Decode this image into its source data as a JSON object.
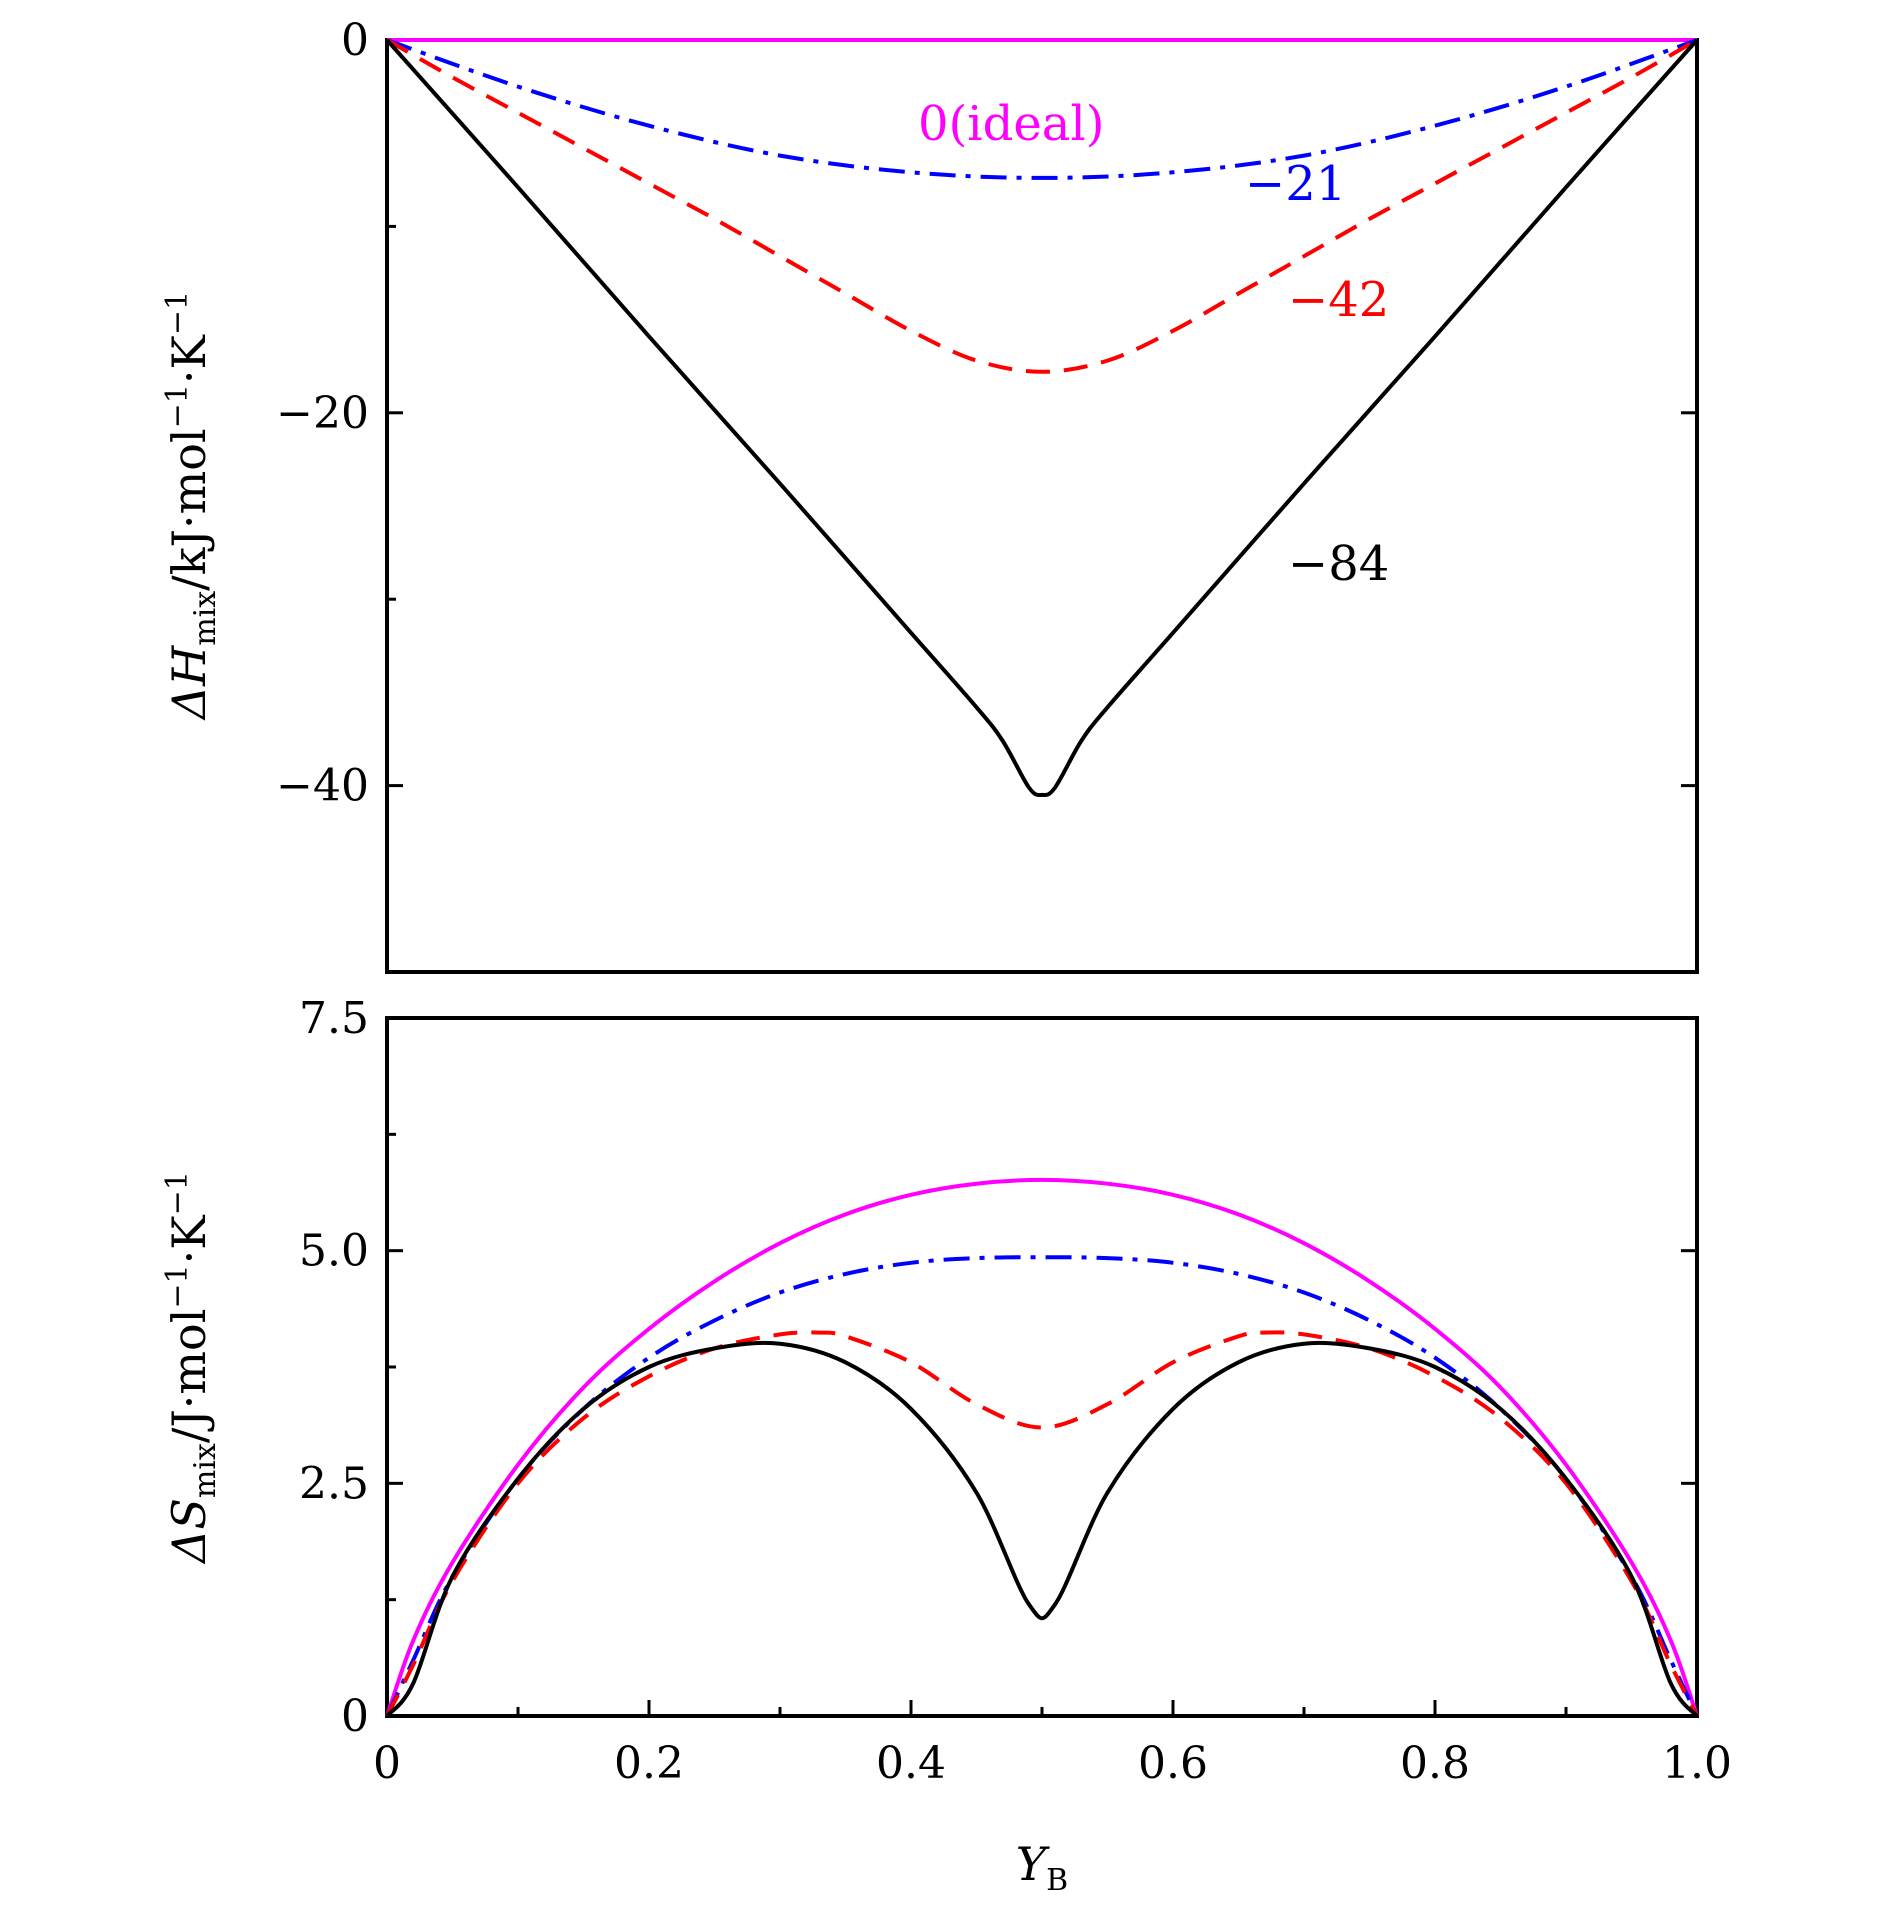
{
  "chart_data": [
    {
      "type": "line",
      "panel": "top",
      "ylabel_parts": {
        "prefix": "ΔH",
        "sub": "mix",
        "units": "/kJ·mol",
        "exp1": "−1",
        "mid": "·K",
        "exp2": "−1"
      },
      "xlim": [
        0,
        1.0
      ],
      "ylim": [
        -50,
        0
      ],
      "yticks_major": [
        0,
        -20,
        -40
      ],
      "ytick_labels": [
        "0",
        "−20",
        "−40"
      ],
      "yticks_minor": [
        -10,
        -30
      ],
      "series": [
        {
          "name": "0(ideal)",
          "label": "0(ideal)",
          "color": "#ff00ff",
          "style": "solid",
          "x": [
            0,
            1
          ],
          "y": [
            0,
            0
          ]
        },
        {
          "name": "−21",
          "label": "−21",
          "color": "#0000ff",
          "style": "dashdot",
          "x": [
            0,
            0.1,
            0.2,
            0.3,
            0.4,
            0.5,
            0.6,
            0.7,
            0.8,
            0.9,
            1.0
          ],
          "y": [
            0,
            -2.5,
            -4.6,
            -6.2,
            -7.1,
            -7.4,
            -7.1,
            -6.2,
            -4.6,
            -2.5,
            0
          ]
        },
        {
          "name": "−42",
          "label": "−42",
          "color": "#ff0000",
          "style": "dashed",
          "x": [
            0,
            0.05,
            0.1,
            0.15,
            0.2,
            0.25,
            0.3,
            0.35,
            0.4,
            0.45,
            0.5,
            0.55,
            0.6,
            0.65,
            0.7,
            0.75,
            0.8,
            0.85,
            0.9,
            0.95,
            1.0
          ],
          "y": [
            0,
            -2.0,
            -3.9,
            -5.8,
            -7.7,
            -9.6,
            -11.6,
            -13.6,
            -15.6,
            -17.2,
            -17.8,
            -17.2,
            -15.6,
            -13.6,
            -11.6,
            -9.6,
            -7.7,
            -5.8,
            -3.9,
            -2.0,
            0
          ]
        },
        {
          "name": "−84",
          "label": "−84",
          "color": "#000000",
          "style": "solid",
          "x": [
            0,
            0.1,
            0.2,
            0.3,
            0.4,
            0.45,
            0.47,
            0.49,
            0.5,
            0.51,
            0.53,
            0.55,
            0.6,
            0.7,
            0.8,
            0.9,
            1.0
          ],
          "y": [
            0,
            -7.9,
            -15.9,
            -23.8,
            -31.8,
            -35.8,
            -37.6,
            -40.1,
            -40.5,
            -40.1,
            -37.6,
            -35.8,
            -31.8,
            -23.8,
            -15.9,
            -7.9,
            0
          ]
        }
      ]
    },
    {
      "type": "line",
      "panel": "bottom",
      "xlabel_parts": {
        "main": "Y",
        "sub": "B"
      },
      "ylabel_parts": {
        "prefix": "ΔS",
        "sub": "mix",
        "units": "/J·mol",
        "exp1": "−1",
        "mid": "·K",
        "exp2": "−1"
      },
      "xlim": [
        0,
        1.0
      ],
      "ylim": [
        0,
        7.5
      ],
      "xticks_major": [
        0,
        0.2,
        0.4,
        0.6,
        0.8,
        1.0
      ],
      "xtick_labels": [
        "0",
        "0.2",
        "0.4",
        "0.6",
        "0.8",
        "1.0"
      ],
      "xticks_minor": [
        0.1,
        0.3,
        0.5,
        0.7,
        0.9
      ],
      "yticks_major": [
        0,
        2.5,
        5.0,
        7.5
      ],
      "ytick_labels": [
        "0",
        "2.5",
        "5.0",
        "7.5"
      ],
      "yticks_minor": [
        1.25,
        3.75,
        6.25
      ],
      "series": [
        {
          "name": "0(ideal)",
          "color": "#ff00ff",
          "style": "solid",
          "x": [
            0,
            0.02,
            0.05,
            0.1,
            0.15,
            0.2,
            0.25,
            0.3,
            0.35,
            0.4,
            0.45,
            0.5,
            0.55,
            0.6,
            0.65,
            0.7,
            0.75,
            0.8,
            0.85,
            0.9,
            0.95,
            0.98,
            1.0
          ],
          "y": [
            0,
            0.81,
            1.65,
            2.7,
            3.53,
            4.16,
            4.67,
            5.08,
            5.39,
            5.6,
            5.72,
            5.76,
            5.72,
            5.6,
            5.39,
            5.08,
            4.67,
            4.16,
            3.53,
            2.7,
            1.65,
            0.81,
            0
          ]
        },
        {
          "name": "−21",
          "color": "#0000ff",
          "style": "dashdot",
          "x": [
            0,
            0.02,
            0.05,
            0.1,
            0.15,
            0.2,
            0.25,
            0.3,
            0.35,
            0.4,
            0.45,
            0.5,
            0.55,
            0.6,
            0.65,
            0.7,
            0.75,
            0.8,
            0.85,
            0.9,
            0.95,
            0.98,
            1.0
          ],
          "y": [
            0,
            0.6,
            1.5,
            2.55,
            3.3,
            3.85,
            4.25,
            4.55,
            4.75,
            4.87,
            4.92,
            4.93,
            4.92,
            4.87,
            4.75,
            4.55,
            4.25,
            3.85,
            3.3,
            2.55,
            1.5,
            0.6,
            0
          ]
        },
        {
          "name": "−42",
          "color": "#ff0000",
          "style": "dashed",
          "x": [
            0,
            0.02,
            0.05,
            0.1,
            0.15,
            0.2,
            0.25,
            0.3,
            0.33,
            0.35,
            0.4,
            0.45,
            0.5,
            0.55,
            0.6,
            0.65,
            0.67,
            0.7,
            0.75,
            0.8,
            0.85,
            0.9,
            0.95,
            0.98,
            1.0
          ],
          "y": [
            0,
            0.55,
            1.45,
            2.5,
            3.2,
            3.65,
            3.95,
            4.1,
            4.12,
            4.08,
            3.8,
            3.35,
            3.1,
            3.35,
            3.8,
            4.08,
            4.12,
            4.1,
            3.95,
            3.65,
            3.2,
            2.5,
            1.45,
            0.55,
            0
          ]
        },
        {
          "name": "−84",
          "color": "#000000",
          "style": "solid",
          "x": [
            0,
            0.02,
            0.05,
            0.1,
            0.15,
            0.2,
            0.25,
            0.3,
            0.35,
            0.4,
            0.45,
            0.49,
            0.51,
            0.55,
            0.6,
            0.65,
            0.7,
            0.75,
            0.8,
            0.85,
            0.9,
            0.95,
            0.98,
            1.0
          ],
          "y": [
            0,
            0.35,
            1.5,
            2.55,
            3.3,
            3.75,
            3.95,
            4.0,
            3.8,
            3.3,
            2.4,
            1.2,
            1.2,
            2.4,
            3.3,
            3.8,
            4.0,
            3.95,
            3.75,
            3.3,
            2.55,
            1.5,
            0.35,
            0
          ]
        }
      ]
    }
  ]
}
